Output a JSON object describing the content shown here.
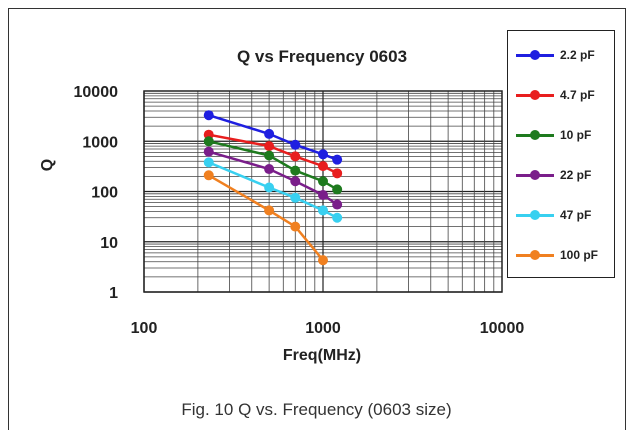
{
  "chart_data": {
    "type": "line",
    "title": "Q vs Frequency 0603",
    "xlabel": "Freq(MHz)",
    "ylabel": "Q",
    "x_scale": "log",
    "y_scale": "log",
    "xlim": [
      100,
      10000
    ],
    "ylim": [
      1,
      10000
    ],
    "x_ticks": [
      "100",
      "1000",
      "10000"
    ],
    "y_ticks": [
      "10000",
      "1000",
      "100",
      "10",
      "1"
    ],
    "grid": true,
    "legend_position": "right",
    "series": [
      {
        "name": "2.2 pF",
        "color": "#1f1fe0",
        "x": [
          230,
          500,
          700,
          1000,
          1200
        ],
        "y": [
          3300,
          1400,
          850,
          550,
          430
        ]
      },
      {
        "name": "4.7 pF",
        "color": "#e81e1e",
        "x": [
          230,
          500,
          700,
          1000,
          1200
        ],
        "y": [
          1350,
          800,
          500,
          320,
          230
        ]
      },
      {
        "name": "10 pF",
        "color": "#1e7a1e",
        "x": [
          230,
          500,
          700,
          1000,
          1200
        ],
        "y": [
          1000,
          520,
          260,
          160,
          110
        ]
      },
      {
        "name": "22 pF",
        "color": "#7a1e8a",
        "x": [
          230,
          500,
          700,
          1000,
          1200
        ],
        "y": [
          620,
          280,
          160,
          85,
          55
        ]
      },
      {
        "name": "47 pF",
        "color": "#38d0f0",
        "x": [
          230,
          500,
          700,
          1000,
          1200
        ],
        "y": [
          380,
          120,
          75,
          42,
          30
        ]
      },
      {
        "name": "100 pF",
        "color": "#f08020",
        "x": [
          230,
          500,
          700,
          1000
        ],
        "y": [
          210,
          42,
          20,
          4.3
        ]
      }
    ]
  },
  "caption": "Fig. 10 Q vs. Frequency (0603 size)"
}
